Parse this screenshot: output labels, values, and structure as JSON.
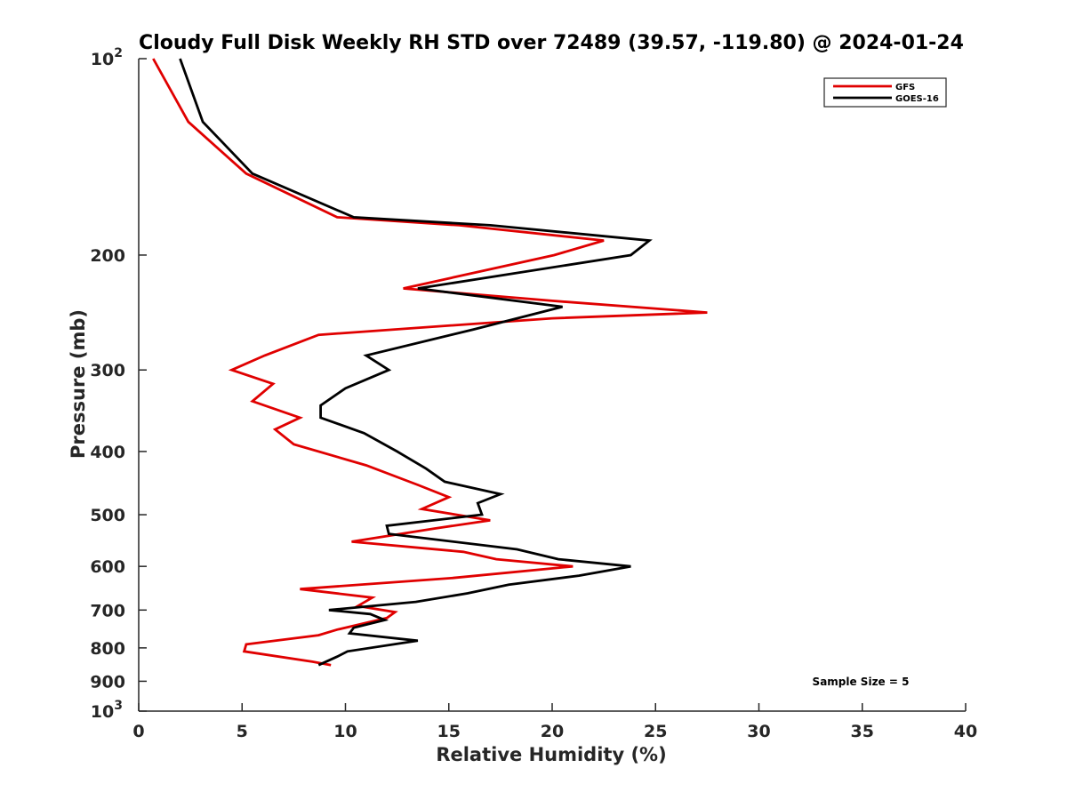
{
  "chart_data": {
    "type": "line",
    "title": "Cloudy Full Disk Weekly RH STD over 72489 (39.57, -119.80) @ 2024-01-24",
    "xlabel": "Relative Humidity (%)",
    "ylabel": "Pressure (mb)",
    "xlim": [
      0,
      40
    ],
    "ylim": [
      100,
      1000
    ],
    "yscale": "log",
    "y_reversed": true,
    "grid": false,
    "legend_position": "top-right",
    "x_ticks": [
      "0",
      "5",
      "10",
      "15",
      "20",
      "25",
      "30",
      "35",
      "40"
    ],
    "y_ticks": [
      {
        "value": 100,
        "base": "10",
        "exp": "2"
      },
      {
        "value": 200,
        "label": "200"
      },
      {
        "value": 300,
        "label": "300"
      },
      {
        "value": 400,
        "label": "400"
      },
      {
        "value": 500,
        "label": "500"
      },
      {
        "value": 600,
        "label": "600"
      },
      {
        "value": 700,
        "label": "700"
      },
      {
        "value": 800,
        "label": "800"
      },
      {
        "value": 900,
        "label": "900"
      },
      {
        "value": 1000,
        "base": "10",
        "exp": "3"
      }
    ],
    "series": [
      {
        "name": "GFS",
        "color": "#e00000",
        "points": [
          [
            0.7,
            100
          ],
          [
            2.4,
            125
          ],
          [
            5.2,
            150
          ],
          [
            9.6,
            175
          ],
          [
            15.5,
            180
          ],
          [
            22.5,
            190
          ],
          [
            20.1,
            200
          ],
          [
            12.8,
            225
          ],
          [
            20.0,
            235
          ],
          [
            27.5,
            245
          ],
          [
            20.0,
            250
          ],
          [
            8.7,
            265
          ],
          [
            6.1,
            285
          ],
          [
            4.5,
            300
          ],
          [
            6.5,
            315
          ],
          [
            5.5,
            335
          ],
          [
            7.8,
            355
          ],
          [
            6.6,
            370
          ],
          [
            7.5,
            390
          ],
          [
            11.0,
            420
          ],
          [
            13.5,
            450
          ],
          [
            15.0,
            470
          ],
          [
            13.7,
            490
          ],
          [
            17.0,
            510
          ],
          [
            14.3,
            525
          ],
          [
            10.3,
            550
          ],
          [
            15.7,
            570
          ],
          [
            17.3,
            585
          ],
          [
            21.0,
            600
          ],
          [
            15.2,
            625
          ],
          [
            7.8,
            650
          ],
          [
            11.3,
            670
          ],
          [
            10.6,
            690
          ],
          [
            12.4,
            705
          ],
          [
            12.0,
            720
          ],
          [
            9.6,
            750
          ],
          [
            8.7,
            765
          ],
          [
            5.2,
            790
          ],
          [
            5.1,
            810
          ],
          [
            8.4,
            840
          ],
          [
            9.3,
            850
          ]
        ]
      },
      {
        "name": "GOES-16",
        "color": "#000000",
        "points": [
          [
            2.0,
            100
          ],
          [
            3.1,
            125
          ],
          [
            5.5,
            150
          ],
          [
            10.4,
            175
          ],
          [
            17.0,
            180
          ],
          [
            24.7,
            190
          ],
          [
            23.8,
            200
          ],
          [
            13.5,
            225
          ],
          [
            20.5,
            240
          ],
          [
            16.2,
            260
          ],
          [
            11.0,
            285
          ],
          [
            12.1,
            300
          ],
          [
            10.0,
            320
          ],
          [
            8.8,
            340
          ],
          [
            8.8,
            355
          ],
          [
            10.9,
            375
          ],
          [
            12.5,
            400
          ],
          [
            13.9,
            425
          ],
          [
            14.8,
            445
          ],
          [
            17.5,
            465
          ],
          [
            16.4,
            480
          ],
          [
            16.6,
            500
          ],
          [
            12.0,
            520
          ],
          [
            12.1,
            535
          ],
          [
            18.3,
            565
          ],
          [
            20.3,
            585
          ],
          [
            23.8,
            600
          ],
          [
            21.3,
            620
          ],
          [
            17.9,
            640
          ],
          [
            15.9,
            660
          ],
          [
            13.4,
            680
          ],
          [
            9.2,
            700
          ],
          [
            11.2,
            710
          ],
          [
            11.9,
            725
          ],
          [
            10.4,
            745
          ],
          [
            10.2,
            760
          ],
          [
            13.5,
            780
          ],
          [
            10.1,
            810
          ],
          [
            9.6,
            825
          ],
          [
            8.7,
            850
          ]
        ]
      }
    ],
    "annotations": [
      "Sample Size = 5"
    ]
  }
}
